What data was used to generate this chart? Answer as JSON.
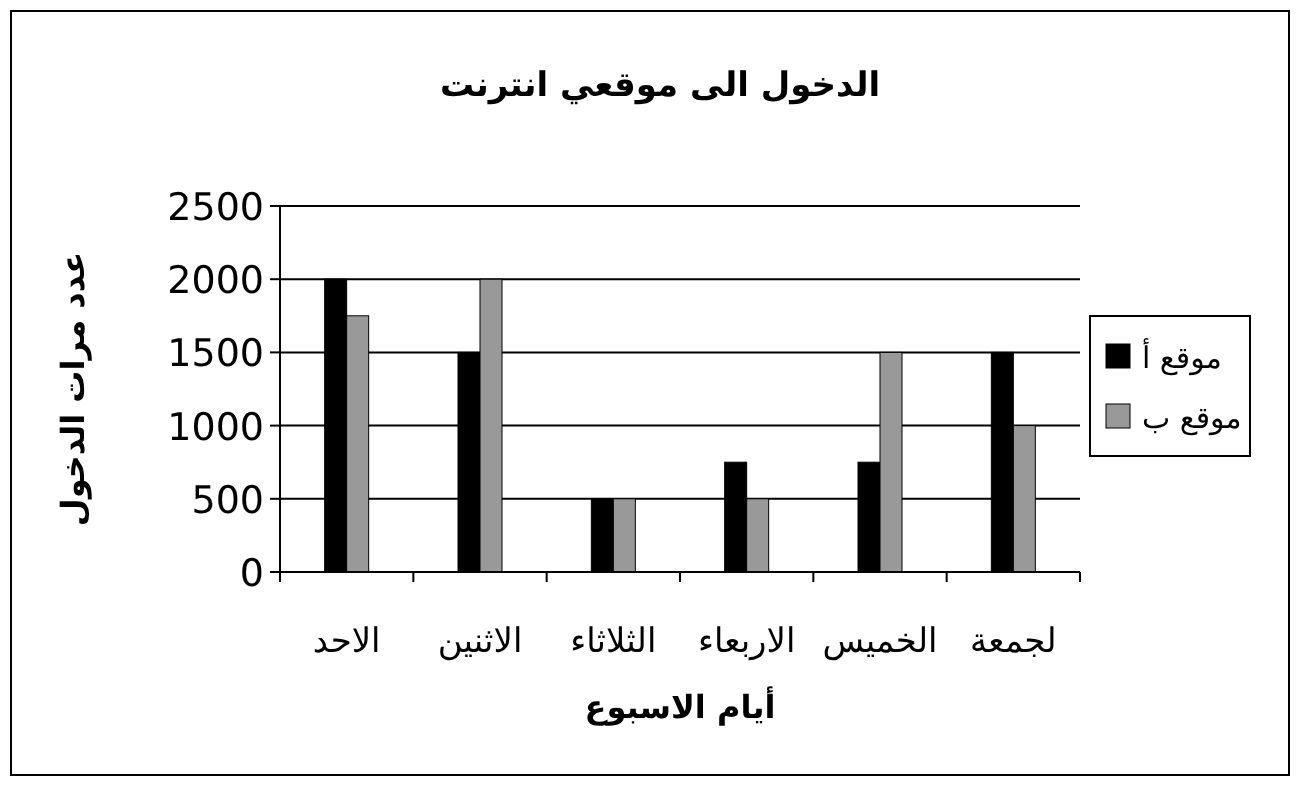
{
  "chart_data": {
    "type": "bar",
    "title": "الدخول الى موقعي انترنت",
    "xlabel": "أيام الاسبوع",
    "ylabel": "عدد مرات الدخول",
    "categories": [
      "الاحد",
      "الاثنين",
      "الثلاثاء",
      "الاربعاء",
      "الخميس",
      "لجمعة"
    ],
    "series": [
      {
        "name": "موقع أ",
        "color": "#000000",
        "values": [
          2000,
          1500,
          500,
          750,
          750,
          1500
        ]
      },
      {
        "name": "موقع ب",
        "color": "#999999",
        "values": [
          1750,
          2000,
          500,
          500,
          1500,
          1000
        ]
      }
    ],
    "ylim": [
      0,
      2500
    ],
    "yticks": [
      0,
      500,
      1000,
      1500,
      2000,
      2500
    ],
    "grid": "y",
    "legend": "right"
  }
}
